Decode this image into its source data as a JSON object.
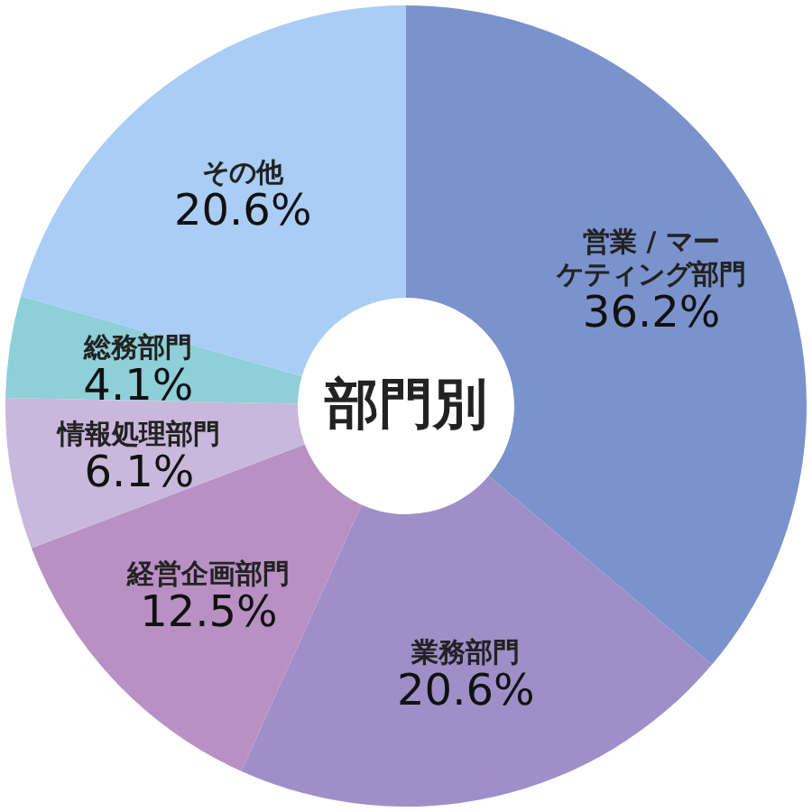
{
  "chart_data": {
    "type": "donut",
    "title": "部門別",
    "categories": [
      "営業 / マーケティング部門",
      "業務部門",
      "経営企画部門",
      "情報処理部門",
      "総務部門",
      "その他"
    ],
    "values": [
      36.2,
      20.6,
      12.5,
      6.1,
      4.1,
      20.6
    ],
    "value_labels": [
      "36.2%",
      "20.6%",
      "12.5%",
      "6.1%",
      "4.1%",
      "20.6%"
    ],
    "colors": [
      "#7b93cc",
      "#9f8fc8",
      "#b990c4",
      "#c9b8dc",
      "#8ecfd8",
      "#a9cdf5"
    ],
    "legend": false
  }
}
